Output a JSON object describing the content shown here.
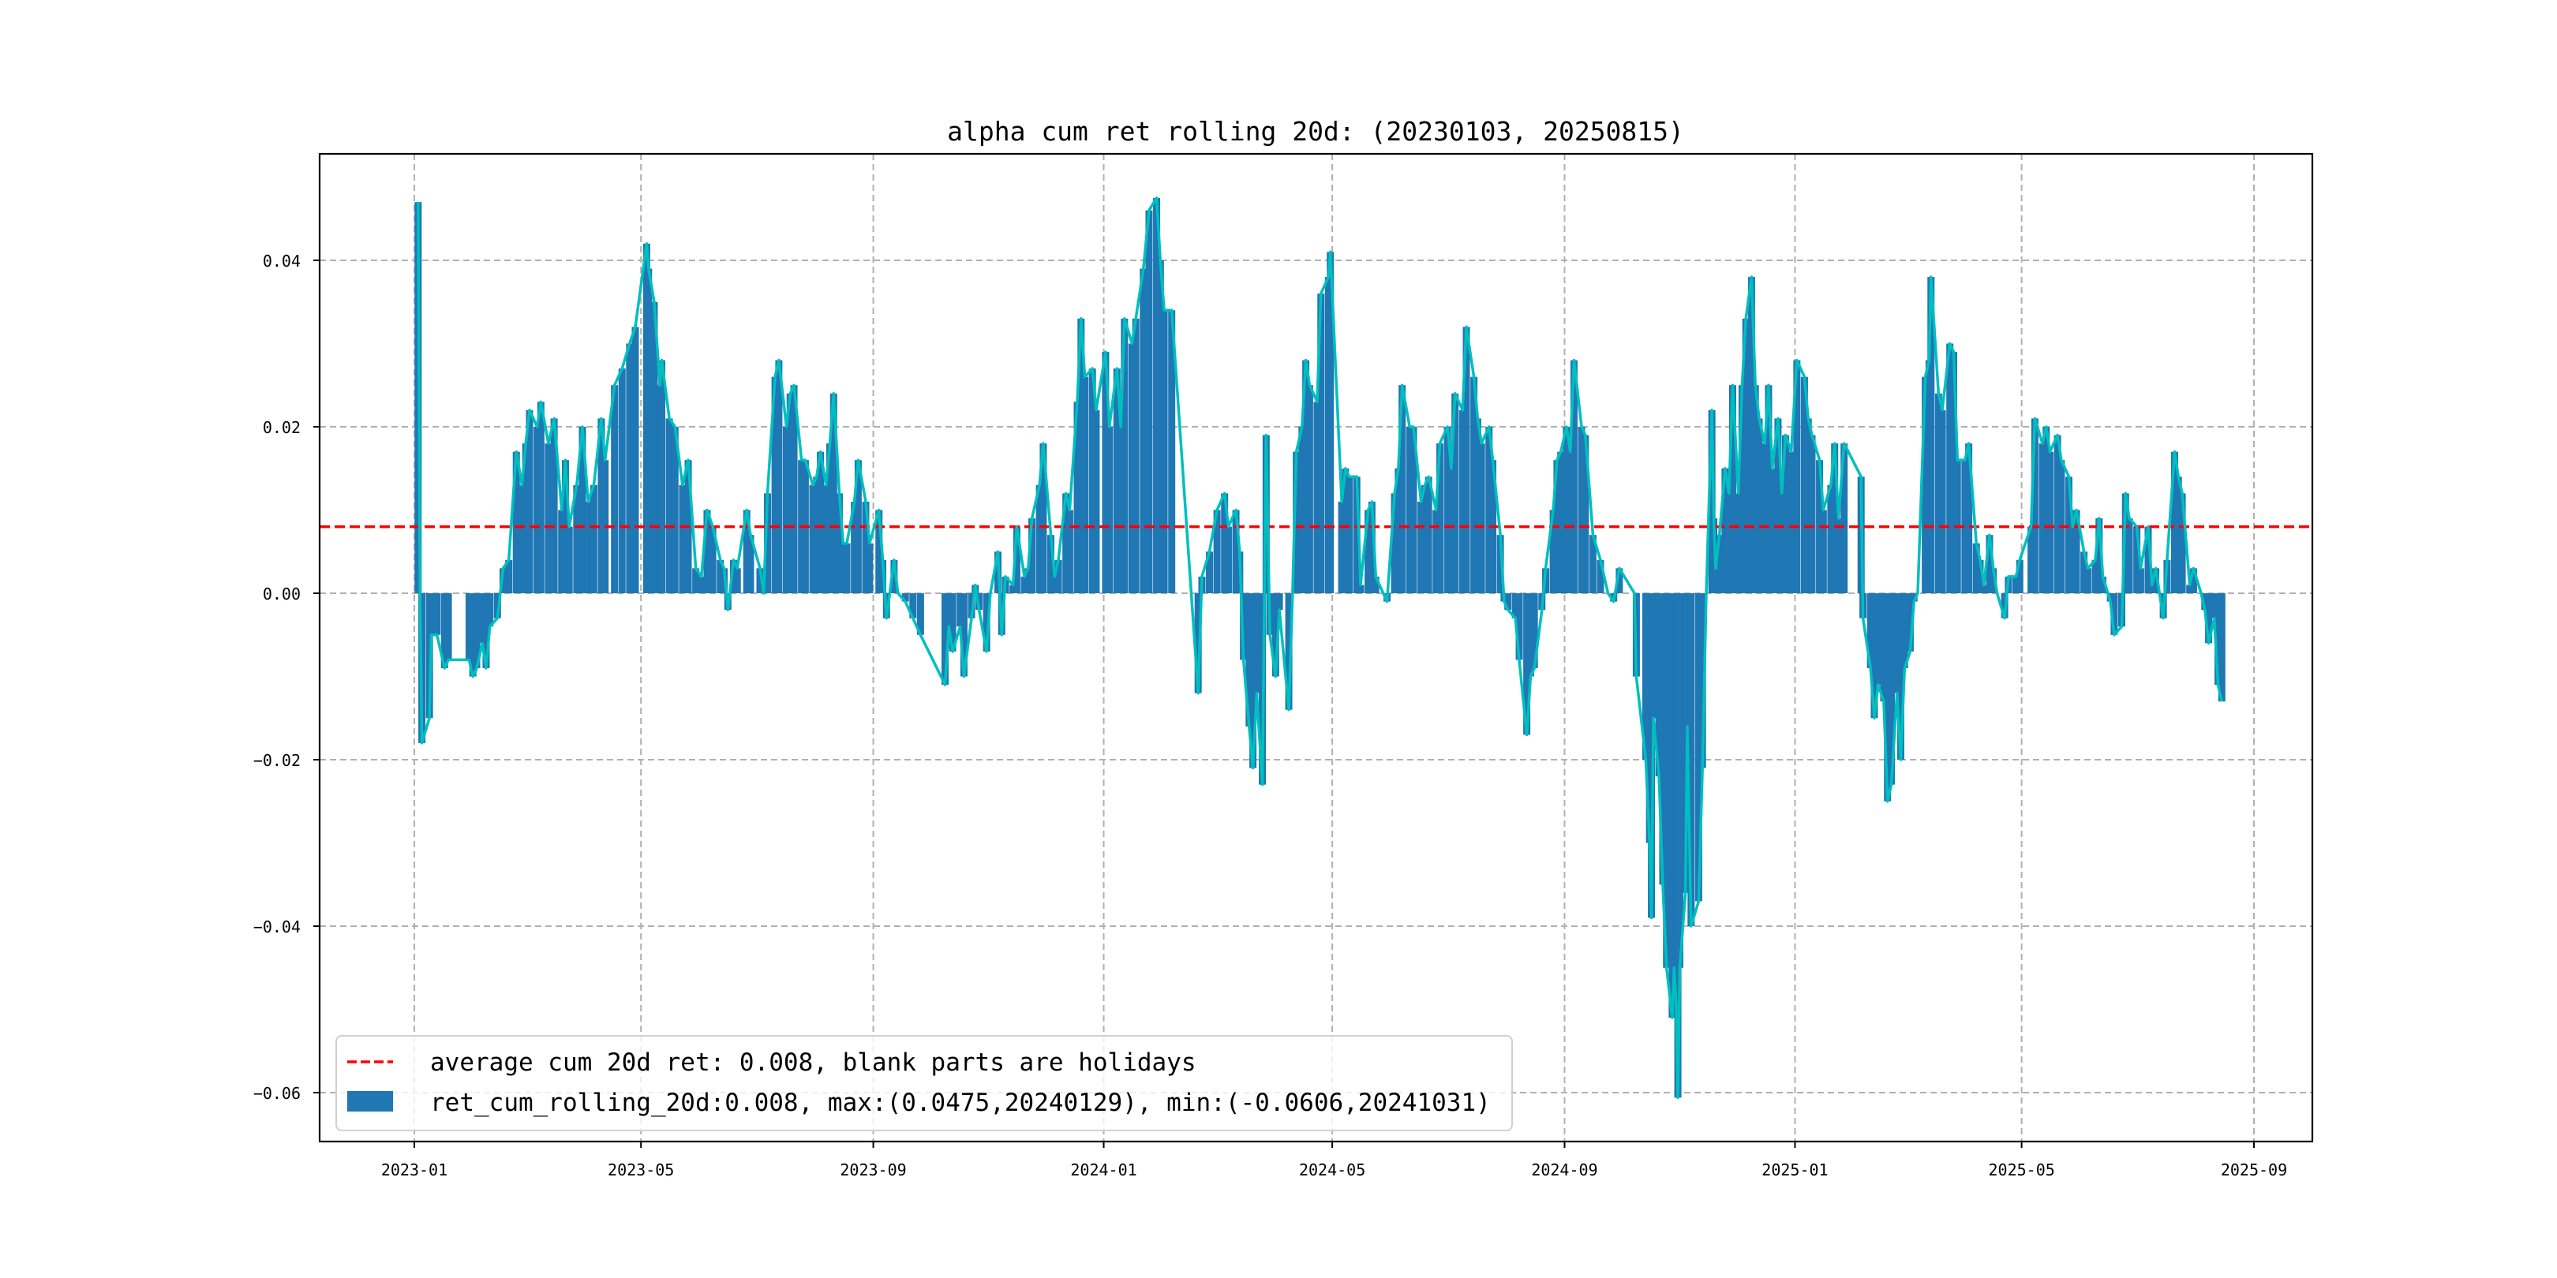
{
  "chart_data": {
    "type": "bar",
    "title": "alpha cum ret rolling 20d: (20230103, 20250815)",
    "xlabel": "",
    "ylabel": "",
    "ylim": [
      -0.0659,
      0.0528
    ],
    "xlim": [
      "2022-12-14",
      "2025-09-31"
    ],
    "grid": true,
    "legend_position": "lower-left",
    "x_ticks": [
      {
        "date": "2023-01-01",
        "label": "2023-01"
      },
      {
        "date": "2023-05-01",
        "label": "2023-05"
      },
      {
        "date": "2023-09-01",
        "label": "2023-09"
      },
      {
        "date": "2024-01-01",
        "label": "2024-01"
      },
      {
        "date": "2024-05-01",
        "label": "2024-05"
      },
      {
        "date": "2024-09-01",
        "label": "2024-09"
      },
      {
        "date": "2025-01-01",
        "label": "2025-01"
      },
      {
        "date": "2025-05-01",
        "label": "2025-05"
      },
      {
        "date": "2025-09-01",
        "label": "2025-09"
      }
    ],
    "y_ticks": [
      {
        "value": 0.04,
        "label": "0.04"
      },
      {
        "value": 0.02,
        "label": "0.02"
      },
      {
        "value": 0.0,
        "label": "0.00"
      },
      {
        "value": -0.02,
        "label": "−0.02"
      },
      {
        "value": -0.04,
        "label": "−0.04"
      },
      {
        "value": -0.06,
        "label": "−0.06"
      }
    ],
    "average": 0.008,
    "legend": [
      {
        "label": "average cum 20d ret: 0.008, blank parts are holidays",
        "kind": "dashed-line",
        "color": "#ff0000"
      },
      {
        "label": "ret_cum_rolling_20d:0.008, max:(0.0475,20240129), min:(-0.0606,20241031)",
        "kind": "bar",
        "color": "#1f77b4"
      }
    ],
    "colors": {
      "bar": "#1f77b4",
      "line": "#00bfbf",
      "average": "#ff0000",
      "grid": "#b0b0b0"
    },
    "series": [
      [
        "2023-01-03",
        0.047
      ],
      [
        "2023-01-04",
        0.0
      ],
      [
        "2023-01-05",
        -0.018
      ],
      [
        "2023-01-09",
        -0.015
      ],
      [
        "2023-01-10",
        -0.005
      ],
      [
        "2023-01-13",
        -0.005
      ],
      [
        "2023-01-17",
        -0.009
      ],
      [
        "2023-01-19",
        -0.008
      ],
      [
        "2023-01-30",
        -0.008
      ],
      [
        "2023-02-01",
        -0.01
      ],
      [
        "2023-02-03",
        -0.009
      ],
      [
        "2023-02-06",
        -0.006
      ],
      [
        "2023-02-08",
        -0.009
      ],
      [
        "2023-02-10",
        -0.004
      ],
      [
        "2023-02-14",
        -0.003
      ],
      [
        "2023-02-17",
        0.003
      ],
      [
        "2023-02-20",
        0.004
      ],
      [
        "2023-02-24",
        0.017
      ],
      [
        "2023-02-27",
        0.013
      ],
      [
        "2023-03-01",
        0.018
      ],
      [
        "2023-03-03",
        0.022
      ],
      [
        "2023-03-07",
        0.02
      ],
      [
        "2023-03-09",
        0.023
      ],
      [
        "2023-03-13",
        0.018
      ],
      [
        "2023-03-16",
        0.021
      ],
      [
        "2023-03-20",
        0.01
      ],
      [
        "2023-03-22",
        0.016
      ],
      [
        "2023-03-24",
        0.008
      ],
      [
        "2023-03-28",
        0.013
      ],
      [
        "2023-03-31",
        0.02
      ],
      [
        "2023-04-03",
        0.011
      ],
      [
        "2023-04-06",
        0.013
      ],
      [
        "2023-04-10",
        0.021
      ],
      [
        "2023-04-12",
        0.016
      ],
      [
        "2023-04-17",
        0.025
      ],
      [
        "2023-04-21",
        0.027
      ],
      [
        "2023-04-25",
        0.03
      ],
      [
        "2023-04-28",
        0.032
      ],
      [
        "2023-05-04",
        0.042
      ],
      [
        "2023-05-05",
        0.039
      ],
      [
        "2023-05-08",
        0.035
      ],
      [
        "2023-05-11",
        0.025
      ],
      [
        "2023-05-12",
        0.028
      ],
      [
        "2023-05-16",
        0.021
      ],
      [
        "2023-05-19",
        0.02
      ],
      [
        "2023-05-23",
        0.013
      ],
      [
        "2023-05-26",
        0.016
      ],
      [
        "2023-05-30",
        0.003
      ],
      [
        "2023-06-02",
        0.002
      ],
      [
        "2023-06-05",
        0.01
      ],
      [
        "2023-06-08",
        0.008
      ],
      [
        "2023-06-12",
        0.004
      ],
      [
        "2023-06-14",
        0.003
      ],
      [
        "2023-06-16",
        -0.002
      ],
      [
        "2023-06-19",
        0.004
      ],
      [
        "2023-06-21",
        0.003
      ],
      [
        "2023-06-26",
        0.01
      ],
      [
        "2023-06-28",
        0.007
      ],
      [
        "2023-07-03",
        0.003
      ],
      [
        "2023-07-05",
        0.0
      ],
      [
        "2023-07-07",
        0.012
      ],
      [
        "2023-07-11",
        0.026
      ],
      [
        "2023-07-13",
        0.028
      ],
      [
        "2023-07-17",
        0.02
      ],
      [
        "2023-07-19",
        0.024
      ],
      [
        "2023-07-21",
        0.025
      ],
      [
        "2023-07-25",
        0.016
      ],
      [
        "2023-07-27",
        0.016
      ],
      [
        "2023-07-31",
        0.013
      ],
      [
        "2023-08-02",
        0.014
      ],
      [
        "2023-08-04",
        0.017
      ],
      [
        "2023-08-07",
        0.013
      ],
      [
        "2023-08-09",
        0.018
      ],
      [
        "2023-08-11",
        0.024
      ],
      [
        "2023-08-14",
        0.012
      ],
      [
        "2023-08-16",
        0.006
      ],
      [
        "2023-08-18",
        0.006
      ],
      [
        "2023-08-22",
        0.011
      ],
      [
        "2023-08-24",
        0.016
      ],
      [
        "2023-08-28",
        0.011
      ],
      [
        "2023-08-30",
        0.006
      ],
      [
        "2023-09-04",
        0.01
      ],
      [
        "2023-09-06",
        0.004
      ],
      [
        "2023-09-08",
        -0.003
      ],
      [
        "2023-09-12",
        0.004
      ],
      [
        "2023-09-14",
        0.0
      ],
      [
        "2023-09-18",
        -0.001
      ],
      [
        "2023-09-22",
        -0.003
      ],
      [
        "2023-09-26",
        -0.005
      ],
      [
        "2023-10-09",
        -0.011
      ],
      [
        "2023-10-11",
        -0.004
      ],
      [
        "2023-10-13",
        -0.007
      ],
      [
        "2023-10-17",
        -0.004
      ],
      [
        "2023-10-19",
        -0.01
      ],
      [
        "2023-10-23",
        -0.003
      ],
      [
        "2023-10-25",
        0.001
      ],
      [
        "2023-10-27",
        -0.002
      ],
      [
        "2023-10-31",
        -0.007
      ],
      [
        "2023-11-02",
        0.0
      ],
      [
        "2023-11-06",
        0.005
      ],
      [
        "2023-11-08",
        -0.005
      ],
      [
        "2023-11-10",
        0.002
      ],
      [
        "2023-11-14",
        0.001
      ],
      [
        "2023-11-16",
        0.008
      ],
      [
        "2023-11-20",
        0.002
      ],
      [
        "2023-11-22",
        0.003
      ],
      [
        "2023-11-24",
        0.009
      ],
      [
        "2023-11-28",
        0.013
      ],
      [
        "2023-11-30",
        0.018
      ],
      [
        "2023-12-04",
        0.007
      ],
      [
        "2023-12-06",
        0.002
      ],
      [
        "2023-12-08",
        0.004
      ],
      [
        "2023-12-12",
        0.012
      ],
      [
        "2023-12-14",
        0.01
      ],
      [
        "2023-12-18",
        0.023
      ],
      [
        "2023-12-20",
        0.033
      ],
      [
        "2023-12-22",
        0.026
      ],
      [
        "2023-12-26",
        0.027
      ],
      [
        "2023-12-28",
        0.022
      ],
      [
        "2024-01-02",
        0.029
      ],
      [
        "2024-01-04",
        0.02
      ],
      [
        "2024-01-08",
        0.027
      ],
      [
        "2024-01-10",
        0.02
      ],
      [
        "2024-01-12",
        0.033
      ],
      [
        "2024-01-16",
        0.03
      ],
      [
        "2024-01-18",
        0.033
      ],
      [
        "2024-01-22",
        0.039
      ],
      [
        "2024-01-25",
        0.046
      ],
      [
        "2024-01-29",
        0.0475
      ],
      [
        "2024-01-31",
        0.04
      ],
      [
        "2024-02-02",
        0.034
      ],
      [
        "2024-02-06",
        0.034
      ],
      [
        "2024-02-20",
        -0.012
      ],
      [
        "2024-02-22",
        0.002
      ],
      [
        "2024-02-26",
        0.005
      ],
      [
        "2024-03-01",
        0.01
      ],
      [
        "2024-03-05",
        0.012
      ],
      [
        "2024-03-07",
        0.008
      ],
      [
        "2024-03-11",
        0.01
      ],
      [
        "2024-03-13",
        0.005
      ],
      [
        "2024-03-15",
        -0.008
      ],
      [
        "2024-03-18",
        -0.016
      ],
      [
        "2024-03-20",
        -0.021
      ],
      [
        "2024-03-22",
        -0.012
      ],
      [
        "2024-03-25",
        -0.023
      ],
      [
        "2024-03-27",
        0.019
      ],
      [
        "2024-03-29",
        -0.005
      ],
      [
        "2024-04-01",
        -0.01
      ],
      [
        "2024-04-03",
        -0.002
      ],
      [
        "2024-04-08",
        -0.014
      ],
      [
        "2024-04-10",
        0.0
      ],
      [
        "2024-04-12",
        0.017
      ],
      [
        "2024-04-15",
        0.02
      ],
      [
        "2024-04-17",
        0.028
      ],
      [
        "2024-04-19",
        0.025
      ],
      [
        "2024-04-23",
        0.023
      ],
      [
        "2024-04-25",
        0.036
      ],
      [
        "2024-04-29",
        0.038
      ],
      [
        "2024-04-30",
        0.041
      ],
      [
        "2024-05-06",
        0.011
      ],
      [
        "2024-05-08",
        0.015
      ],
      [
        "2024-05-10",
        0.014
      ],
      [
        "2024-05-14",
        0.014
      ],
      [
        "2024-05-16",
        0.001
      ],
      [
        "2024-05-20",
        0.01
      ],
      [
        "2024-05-22",
        0.011
      ],
      [
        "2024-05-24",
        0.002
      ],
      [
        "2024-05-28",
        0.0
      ],
      [
        "2024-05-30",
        -0.001
      ],
      [
        "2024-06-03",
        0.012
      ],
      [
        "2024-06-05",
        0.015
      ],
      [
        "2024-06-07",
        0.025
      ],
      [
        "2024-06-11",
        0.02
      ],
      [
        "2024-06-13",
        0.02
      ],
      [
        "2024-06-17",
        0.011
      ],
      [
        "2024-06-19",
        0.013
      ],
      [
        "2024-06-21",
        0.014
      ],
      [
        "2024-06-25",
        0.01
      ],
      [
        "2024-06-27",
        0.018
      ],
      [
        "2024-07-01",
        0.02
      ],
      [
        "2024-07-03",
        0.015
      ],
      [
        "2024-07-05",
        0.024
      ],
      [
        "2024-07-09",
        0.022
      ],
      [
        "2024-07-11",
        0.032
      ],
      [
        "2024-07-15",
        0.026
      ],
      [
        "2024-07-17",
        0.021
      ],
      [
        "2024-07-19",
        0.018
      ],
      [
        "2024-07-23",
        0.02
      ],
      [
        "2024-07-25",
        0.016
      ],
      [
        "2024-07-29",
        0.007
      ],
      [
        "2024-07-31",
        -0.001
      ],
      [
        "2024-08-02",
        -0.002
      ],
      [
        "2024-08-06",
        -0.003
      ],
      [
        "2024-08-08",
        -0.008
      ],
      [
        "2024-08-12",
        -0.017
      ],
      [
        "2024-08-14",
        -0.01
      ],
      [
        "2024-08-16",
        -0.009
      ],
      [
        "2024-08-20",
        -0.002
      ],
      [
        "2024-08-22",
        0.003
      ],
      [
        "2024-08-26",
        0.01
      ],
      [
        "2024-08-28",
        0.016
      ],
      [
        "2024-08-30",
        0.017
      ],
      [
        "2024-09-02",
        0.02
      ],
      [
        "2024-09-04",
        0.017
      ],
      [
        "2024-09-06",
        0.028
      ],
      [
        "2024-09-10",
        0.02
      ],
      [
        "2024-09-12",
        0.019
      ],
      [
        "2024-09-16",
        0.007
      ],
      [
        "2024-09-20",
        0.004
      ],
      [
        "2024-09-24",
        0.0
      ],
      [
        "2024-09-27",
        -0.001
      ],
      [
        "2024-09-30",
        0.003
      ],
      [
        "2024-10-08",
        0.0
      ],
      [
        "2024-10-09",
        -0.01
      ],
      [
        "2024-10-14",
        -0.02
      ],
      [
        "2024-10-16",
        -0.03
      ],
      [
        "2024-10-17",
        -0.039
      ],
      [
        "2024-10-18",
        -0.015
      ],
      [
        "2024-10-21",
        -0.022
      ],
      [
        "2024-10-23",
        -0.035
      ],
      [
        "2024-10-25",
        -0.045
      ],
      [
        "2024-10-28",
        -0.051
      ],
      [
        "2024-10-29",
        -0.045
      ],
      [
        "2024-10-30",
        -0.049
      ],
      [
        "2024-10-31",
        -0.0606
      ],
      [
        "2024-11-01",
        -0.045
      ],
      [
        "2024-11-04",
        -0.036
      ],
      [
        "2024-11-05",
        -0.016
      ],
      [
        "2024-11-07",
        -0.04
      ],
      [
        "2024-11-11",
        -0.037
      ],
      [
        "2024-11-13",
        -0.021
      ],
      [
        "2024-11-15",
        0.0
      ],
      [
        "2024-11-18",
        0.022
      ],
      [
        "2024-11-19",
        0.009
      ],
      [
        "2024-11-20",
        0.003
      ],
      [
        "2024-11-22",
        0.007
      ],
      [
        "2024-11-25",
        0.015
      ],
      [
        "2024-11-27",
        0.012
      ],
      [
        "2024-11-29",
        0.025
      ],
      [
        "2024-12-02",
        0.012
      ],
      [
        "2024-12-04",
        0.025
      ],
      [
        "2024-12-06",
        0.033
      ],
      [
        "2024-12-09",
        0.038
      ],
      [
        "2024-12-11",
        0.025
      ],
      [
        "2024-12-13",
        0.021
      ],
      [
        "2024-12-16",
        0.018
      ],
      [
        "2024-12-18",
        0.025
      ],
      [
        "2024-12-20",
        0.015
      ],
      [
        "2024-12-23",
        0.021
      ],
      [
        "2024-12-25",
        0.012
      ],
      [
        "2024-12-27",
        0.019
      ],
      [
        "2024-12-30",
        0.017
      ],
      [
        "2025-01-02",
        0.028
      ],
      [
        "2025-01-06",
        0.026
      ],
      [
        "2025-01-08",
        0.021
      ],
      [
        "2025-01-10",
        0.019
      ],
      [
        "2025-01-14",
        0.016
      ],
      [
        "2025-01-16",
        0.01
      ],
      [
        "2025-01-20",
        0.013
      ],
      [
        "2025-01-22",
        0.018
      ],
      [
        "2025-01-24",
        0.009
      ],
      [
        "2025-01-27",
        0.018
      ],
      [
        "2025-02-05",
        0.014
      ],
      [
        "2025-02-06",
        -0.003
      ],
      [
        "2025-02-10",
        -0.009
      ],
      [
        "2025-02-12",
        -0.015
      ],
      [
        "2025-02-14",
        -0.011
      ],
      [
        "2025-02-17",
        -0.013
      ],
      [
        "2025-02-19",
        -0.025
      ],
      [
        "2025-02-21",
        -0.023
      ],
      [
        "2025-02-24",
        -0.012
      ],
      [
        "2025-02-26",
        -0.02
      ],
      [
        "2025-02-28",
        -0.009
      ],
      [
        "2025-03-03",
        -0.007
      ],
      [
        "2025-03-05",
        -0.001
      ],
      [
        "2025-03-07",
        0.0
      ],
      [
        "2025-03-11",
        0.026
      ],
      [
        "2025-03-13",
        0.028
      ],
      [
        "2025-03-14",
        0.038
      ],
      [
        "2025-03-18",
        0.024
      ],
      [
        "2025-03-20",
        0.022
      ],
      [
        "2025-03-24",
        0.03
      ],
      [
        "2025-03-26",
        0.029
      ],
      [
        "2025-03-28",
        0.016
      ],
      [
        "2025-04-01",
        0.016
      ],
      [
        "2025-04-03",
        0.018
      ],
      [
        "2025-04-07",
        0.006
      ],
      [
        "2025-04-09",
        0.004
      ],
      [
        "2025-04-11",
        0.001
      ],
      [
        "2025-04-14",
        0.007
      ],
      [
        "2025-04-16",
        0.003
      ],
      [
        "2025-04-18",
        0.0
      ],
      [
        "2025-04-22",
        -0.003
      ],
      [
        "2025-04-24",
        0.002
      ],
      [
        "2025-04-28",
        0.002
      ],
      [
        "2025-04-30",
        0.004
      ],
      [
        "2025-05-06",
        0.008
      ],
      [
        "2025-05-08",
        0.021
      ],
      [
        "2025-05-12",
        0.018
      ],
      [
        "2025-05-14",
        0.02
      ],
      [
        "2025-05-16",
        0.017
      ],
      [
        "2025-05-20",
        0.019
      ],
      [
        "2025-05-22",
        0.016
      ],
      [
        "2025-05-26",
        0.014
      ],
      [
        "2025-05-28",
        0.008
      ],
      [
        "2025-05-30",
        0.01
      ],
      [
        "2025-06-03",
        0.005
      ],
      [
        "2025-06-05",
        0.003
      ],
      [
        "2025-06-09",
        0.004
      ],
      [
        "2025-06-11",
        0.009
      ],
      [
        "2025-06-13",
        0.002
      ],
      [
        "2025-06-17",
        -0.001
      ],
      [
        "2025-06-19",
        -0.005
      ],
      [
        "2025-06-23",
        -0.004
      ],
      [
        "2025-06-25",
        0.012
      ],
      [
        "2025-06-27",
        0.009
      ],
      [
        "2025-07-01",
        0.008
      ],
      [
        "2025-07-03",
        0.003
      ],
      [
        "2025-07-07",
        0.008
      ],
      [
        "2025-07-09",
        0.001
      ],
      [
        "2025-07-11",
        0.003
      ],
      [
        "2025-07-15",
        -0.003
      ],
      [
        "2025-07-17",
        0.004
      ],
      [
        "2025-07-21",
        0.017
      ],
      [
        "2025-07-23",
        0.014
      ],
      [
        "2025-07-25",
        0.012
      ],
      [
        "2025-07-29",
        0.001
      ],
      [
        "2025-07-31",
        0.003
      ],
      [
        "2025-08-04",
        0.0
      ],
      [
        "2025-08-06",
        -0.002
      ],
      [
        "2025-08-08",
        -0.006
      ],
      [
        "2025-08-11",
        -0.003
      ],
      [
        "2025-08-13",
        -0.011
      ],
      [
        "2025-08-15",
        -0.013
      ]
    ]
  }
}
